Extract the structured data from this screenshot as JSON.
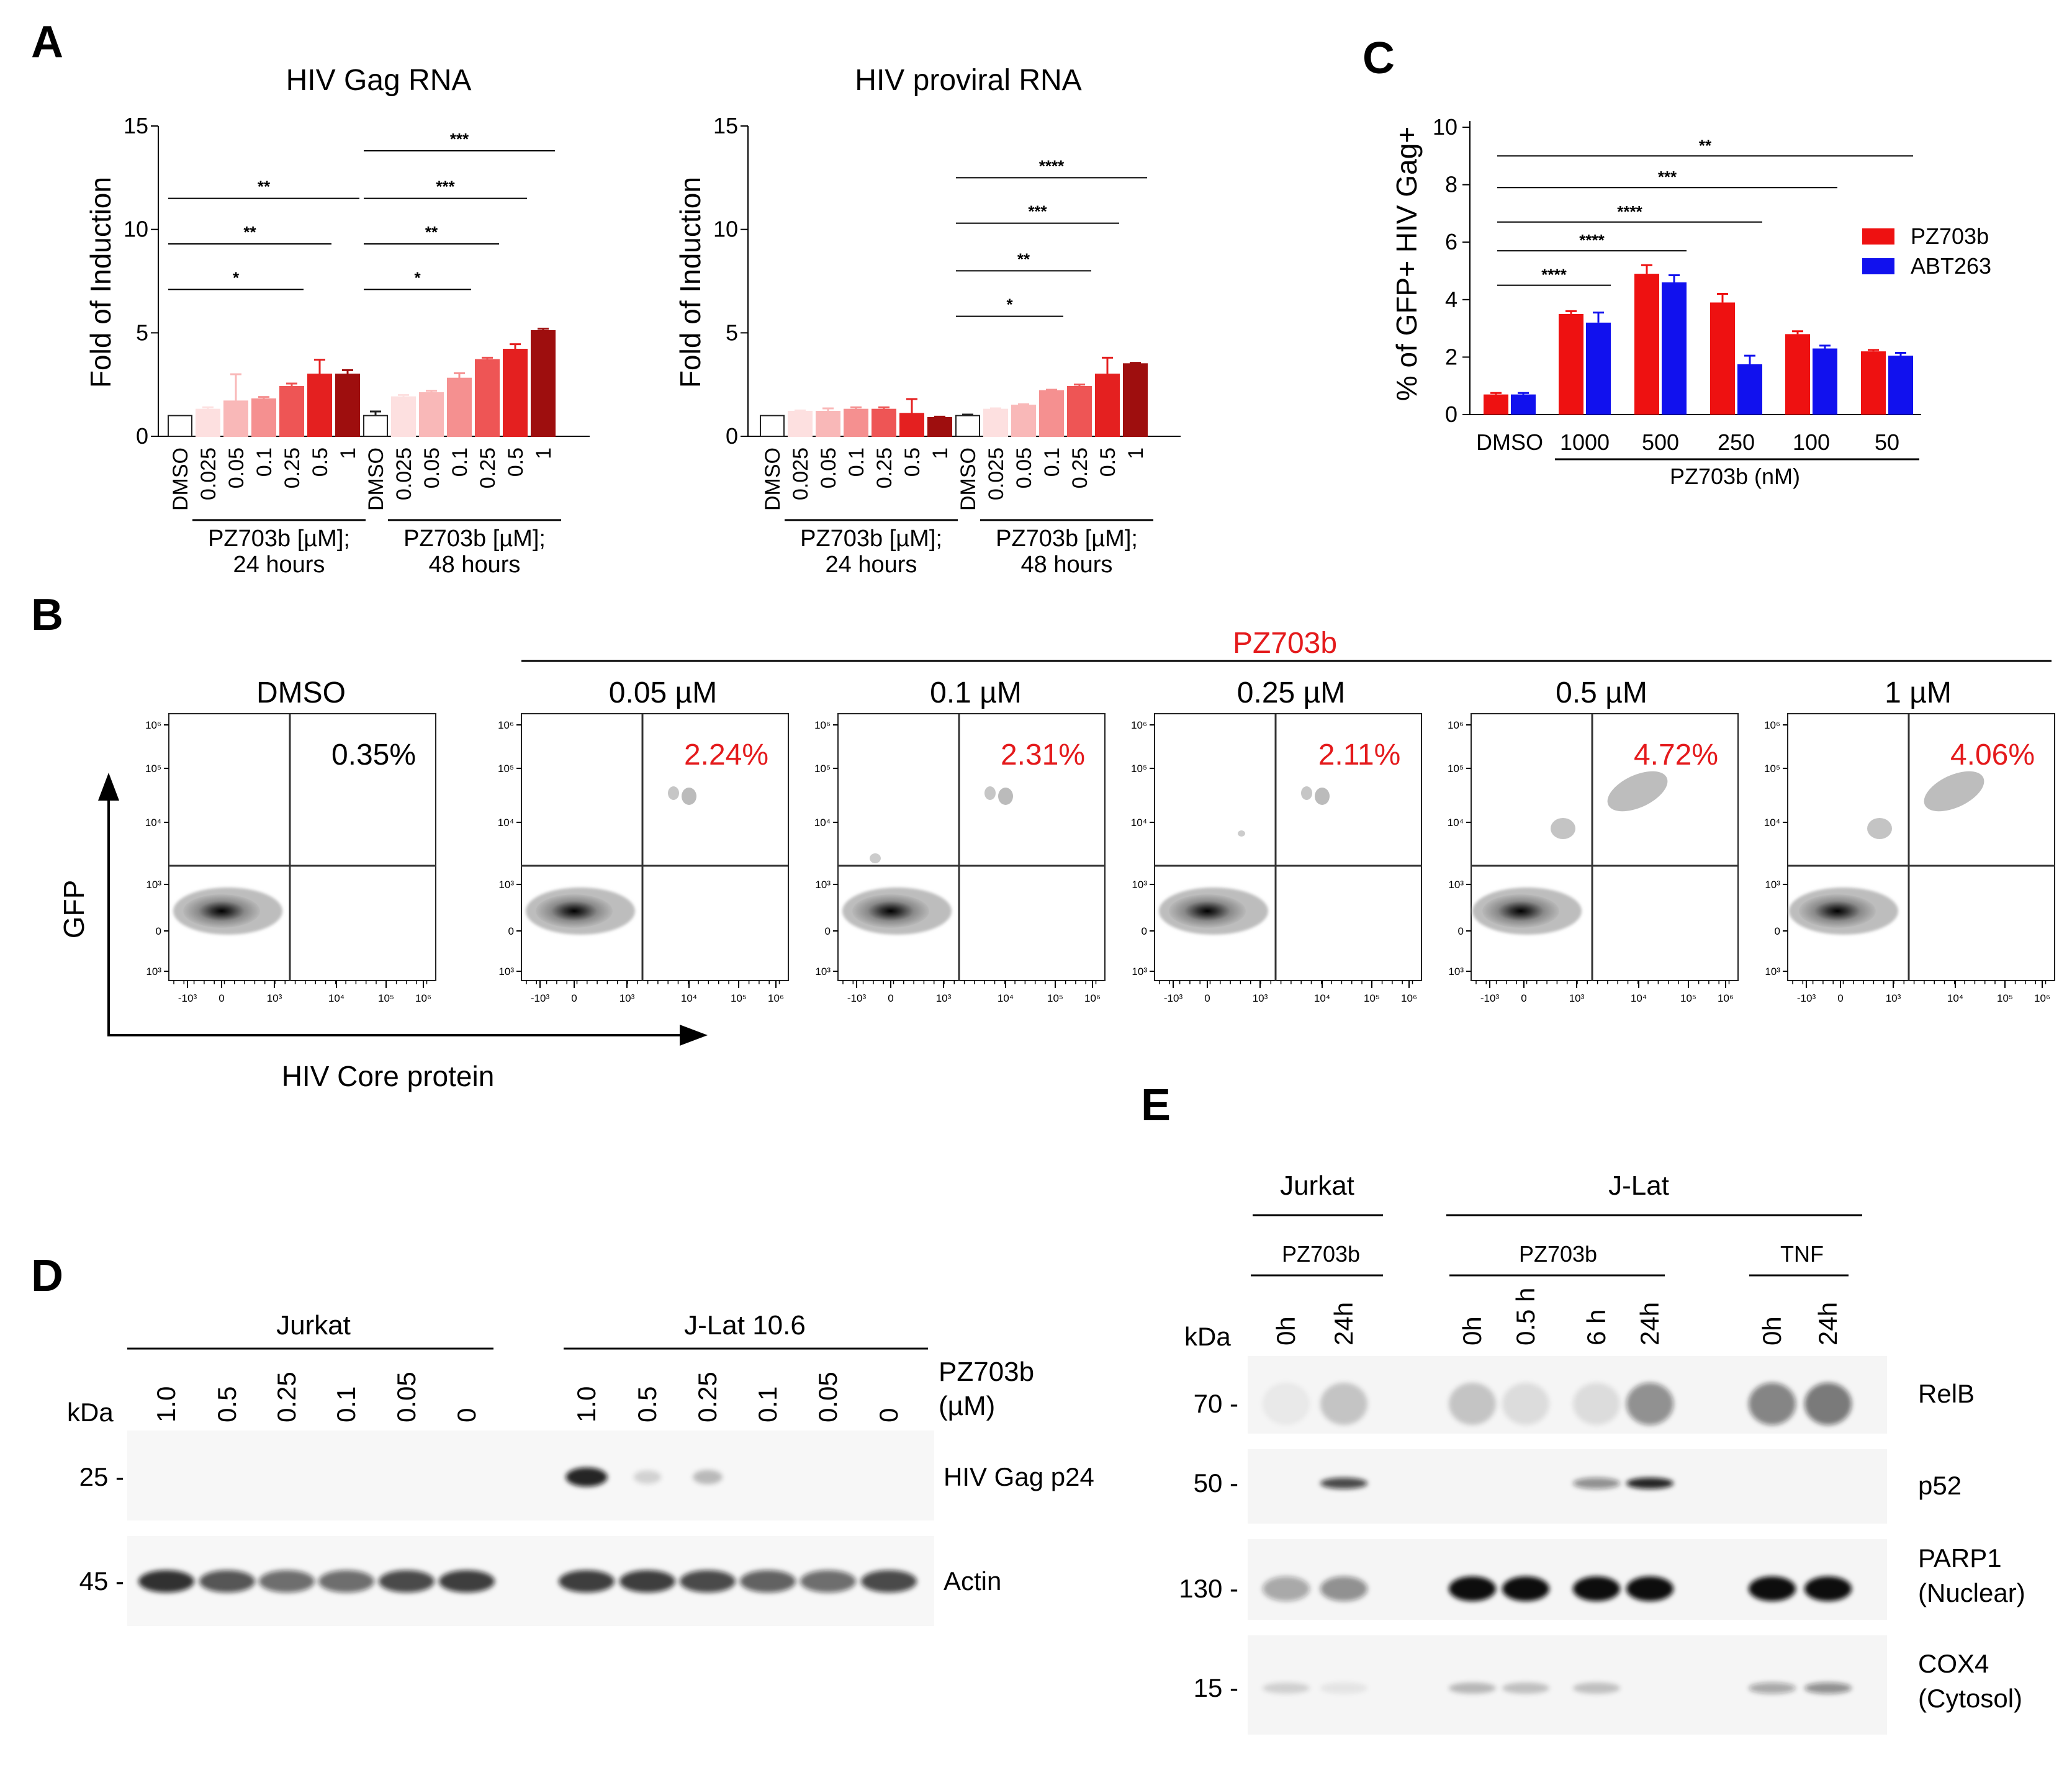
{
  "panels": {
    "A": "A",
    "B": "B",
    "C": "C",
    "D": "D",
    "E": "E"
  },
  "colors": {
    "ramp": [
      "#ffffff",
      "#fde0e0",
      "#f9b8b8",
      "#f59090",
      "#ee5555",
      "#e42020",
      "#9e0e0e"
    ],
    "pz": "#ee1111",
    "abt": "#1111ee",
    "red_text": "#e41a1c"
  },
  "chart_data": [
    {
      "id": "gag",
      "type": "bar",
      "title": "HIV Gag RNA",
      "ylabel": "Fold of Induction",
      "ylim": [
        0,
        15
      ],
      "yticks": [
        "0",
        "5",
        "10",
        "15"
      ],
      "categories": [
        "DMSO",
        "0.025",
        "0.05",
        "0.1",
        "0.25",
        "0.5",
        "1",
        "DMSO",
        "0.025",
        "0.05",
        "0.1",
        "0.25",
        "0.5",
        "1"
      ],
      "values": [
        1.0,
        1.3,
        1.7,
        1.8,
        2.4,
        3.0,
        3.0,
        1.0,
        1.9,
        2.1,
        2.8,
        3.7,
        4.2,
        5.1
      ],
      "errors": [
        0,
        0.1,
        1.3,
        0.1,
        0.15,
        0.7,
        0.2,
        0.2,
        0.1,
        0.1,
        0.25,
        0.1,
        0.25,
        0.1
      ],
      "groups": [
        {
          "line1": "PZ703b [µM];",
          "line2": "24 hours",
          "from": 1,
          "to": 6
        },
        {
          "line1": "PZ703b [µM];",
          "line2": "48 hours",
          "from": 8,
          "to": 13
        }
      ],
      "significance": [
        {
          "label": "**",
          "from": 0,
          "to": 6,
          "y": 11.5
        },
        {
          "label": "**",
          "from": 0,
          "to": 5,
          "y": 9.3
        },
        {
          "label": "*",
          "from": 0,
          "to": 4,
          "y": 7.1
        },
        {
          "label": "***",
          "from": 7,
          "to": 13,
          "y": 13.8
        },
        {
          "label": "***",
          "from": 7,
          "to": 12,
          "y": 11.5
        },
        {
          "label": "**",
          "from": 7,
          "to": 11,
          "y": 9.3
        },
        {
          "label": "*",
          "from": 7,
          "to": 10,
          "y": 7.1
        }
      ]
    },
    {
      "id": "proviral",
      "type": "bar",
      "title": "HIV proviral RNA",
      "ylabel": "Fold of Induction",
      "ylim": [
        0,
        15
      ],
      "yticks": [
        "0",
        "5",
        "10",
        "15"
      ],
      "categories": [
        "DMSO",
        "0.025",
        "0.05",
        "0.1",
        "0.25",
        "0.5",
        "1",
        "DMSO",
        "0.025",
        "0.05",
        "0.1",
        "0.25",
        "0.5",
        "1"
      ],
      "values": [
        1.0,
        1.2,
        1.2,
        1.3,
        1.3,
        1.1,
        0.9,
        1.0,
        1.3,
        1.5,
        2.2,
        2.4,
        3.0,
        3.5
      ],
      "errors": [
        0,
        0.05,
        0.15,
        0.1,
        0.1,
        0.7,
        0.05,
        0.05,
        0.05,
        0.05,
        0.05,
        0.1,
        0.8,
        0.05
      ],
      "groups": [
        {
          "line1": "PZ703b [µM];",
          "line2": "24 hours",
          "from": 1,
          "to": 6
        },
        {
          "line1": "PZ703b [µM];",
          "line2": "48 hours",
          "from": 8,
          "to": 13
        }
      ],
      "significance": [
        {
          "label": "****",
          "from": 7,
          "to": 13,
          "y": 12.5
        },
        {
          "label": "***",
          "from": 7,
          "to": 12,
          "y": 10.3
        },
        {
          "label": "**",
          "from": 7,
          "to": 11,
          "y": 8.0
        },
        {
          "label": "*",
          "from": 7,
          "to": 10,
          "y": 5.8
        }
      ]
    },
    {
      "id": "gfp",
      "type": "bar",
      "ylabel": "% of GFP+ HIV Gag+",
      "xlabel": "PZ703b (nM)",
      "ylim": [
        0,
        10
      ],
      "yticks": [
        "0",
        "2",
        "4",
        "6",
        "8",
        "10"
      ],
      "categories": [
        "DMSO",
        "1000",
        "500",
        "250",
        "100",
        "50"
      ],
      "series": [
        {
          "name": "PZ703b",
          "values": [
            0.7,
            3.5,
            4.9,
            3.9,
            2.8,
            2.2
          ],
          "errors": [
            0.05,
            0.1,
            0.3,
            0.3,
            0.1,
            0.05
          ]
        },
        {
          "name": "ABT263",
          "values": [
            0.7,
            3.2,
            4.6,
            1.75,
            2.3,
            2.05
          ],
          "errors": [
            0.05,
            0.35,
            0.25,
            0.3,
            0.1,
            0.1
          ]
        }
      ],
      "significance": [
        {
          "label": "**",
          "to": 5,
          "y": 9.0
        },
        {
          "label": "***",
          "to": 4,
          "y": 7.9
        },
        {
          "label": "****",
          "to": 3,
          "y": 6.7
        },
        {
          "label": "****",
          "to": 2,
          "y": 5.7
        },
        {
          "label": "****",
          "to": 1,
          "y": 4.5
        }
      ]
    }
  ],
  "flow": {
    "title": "PZ703b",
    "y_axis": "GFP",
    "x_axis": "HIV Core protein",
    "y_ticks": [
      "10⁶",
      "10⁵",
      "10⁴",
      "10³",
      "0",
      "10³"
    ],
    "x_ticks": [
      "-10³",
      "0",
      "10³",
      "10⁴",
      "10⁵",
      "10⁶"
    ],
    "panels": [
      {
        "title": "DMSO",
        "percent": "0.35%",
        "upper_pct": 0.35
      },
      {
        "title": "0.05 µM",
        "percent": "2.24%",
        "upper_pct": 2.24
      },
      {
        "title": "0.1 µM",
        "percent": "2.31%",
        "upper_pct": 2.31
      },
      {
        "title": "0.25 µM",
        "percent": "2.11%",
        "upper_pct": 2.11
      },
      {
        "title": "0.5 µM",
        "percent": "4.72%",
        "upper_pct": 4.72
      },
      {
        "title": "1 µM",
        "percent": "4.06%",
        "upper_pct": 4.06
      }
    ]
  },
  "blotD": {
    "kda_label": "kDa",
    "groups": [
      "Jurkat",
      "J-Lat 10.6"
    ],
    "treatment": [
      "PZ703b",
      "(µM)"
    ],
    "lanes": [
      "1.0",
      "0.5",
      "0.25",
      "0.1",
      "0.05",
      "0",
      "1.0",
      "0.5",
      "0.25",
      "0.1",
      "0.05",
      "0"
    ],
    "rows": [
      {
        "marker": "25 -",
        "name": "HIV Gag p24",
        "bands": [
          0,
          0,
          0,
          0,
          0,
          0,
          0.9,
          0.15,
          0.25,
          0,
          0,
          0
        ]
      },
      {
        "marker": "45 -",
        "name": "Actin",
        "bands": [
          0.85,
          0.7,
          0.6,
          0.6,
          0.75,
          0.8,
          0.8,
          0.8,
          0.75,
          0.65,
          0.6,
          0.75
        ]
      }
    ]
  },
  "blotE": {
    "kda_label": "kDa",
    "cells": [
      "Jurkat",
      "J-Lat"
    ],
    "treatments": [
      "PZ703b",
      "PZ703b",
      "TNF"
    ],
    "lanes": [
      "0h",
      "24h",
      "0h",
      "0.5 h",
      "6 h",
      "24h",
      "0h",
      "24h"
    ],
    "rows": [
      {
        "marker": "70 -",
        "name": "RelB",
        "bands": [
          0.05,
          0.2,
          0.2,
          0.1,
          0.1,
          0.45,
          0.5,
          0.55
        ]
      },
      {
        "marker": "50 -",
        "name": "p52",
        "bands": [
          0,
          0.75,
          0,
          0,
          0.45,
          0.9,
          0,
          0
        ]
      },
      {
        "marker": "130 -",
        "name": "PARP1",
        "name2": "(Nuclear)",
        "bands": [
          0.35,
          0.45,
          1,
          1,
          1,
          1,
          1,
          1
        ]
      },
      {
        "marker": "15 -",
        "name": "COX4",
        "name2": "(Cytosol)",
        "bands": [
          0.15,
          0.07,
          0.25,
          0.22,
          0.22,
          0,
          0.35,
          0.45
        ]
      }
    ]
  }
}
